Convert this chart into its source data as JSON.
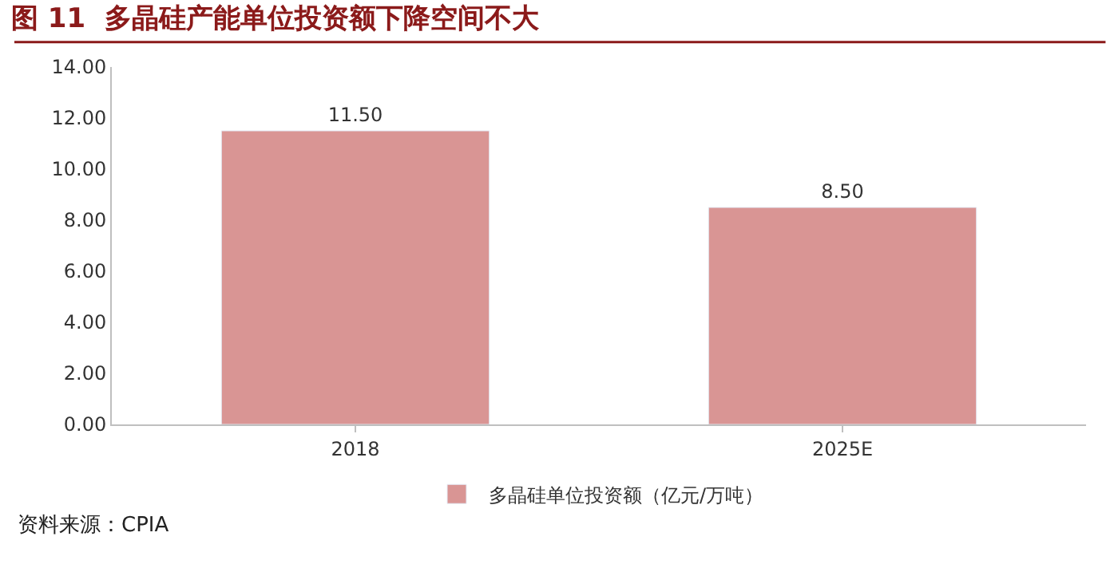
{
  "chart_data": {
    "type": "bar",
    "title": "图 11  多晶硅产能单位投资额下降空间不大",
    "categories": [
      "2018",
      "2025E"
    ],
    "series": [
      {
        "name": "多晶硅单位投资额（亿元/万吨）",
        "color": "#d99594",
        "values": [
          11.5,
          8.5
        ]
      }
    ],
    "ylim": [
      0,
      14
    ],
    "yticks": [
      {
        "value": 0,
        "label": "0.00"
      },
      {
        "value": 2,
        "label": "2.00"
      },
      {
        "value": 4,
        "label": "4.00"
      },
      {
        "value": 6,
        "label": "6.00"
      },
      {
        "value": 8,
        "label": "8.00"
      },
      {
        "value": 10,
        "label": "10.00"
      },
      {
        "value": 12,
        "label": "12.00"
      },
      {
        "value": 14,
        "label": "14.00"
      }
    ],
    "value_labels": [
      "11.50",
      "8.50"
    ],
    "legend": "bottom",
    "annotations": [
      "资料来源：CPIA"
    ]
  }
}
